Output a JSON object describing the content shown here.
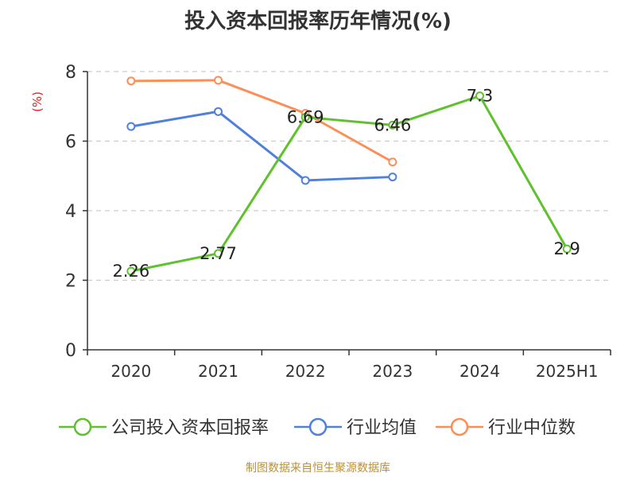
{
  "chart_data": {
    "type": "line",
    "title": "投入资本回报率历年情况(%)",
    "ylabel": "(%)",
    "xlabel": "",
    "categories": [
      "2020",
      "2021",
      "2022",
      "2023",
      "2024",
      "2025H1"
    ],
    "ylim": [
      0,
      8
    ],
    "yticks": [
      0,
      2,
      4,
      6,
      8
    ],
    "grid": true,
    "legend_position": "bottom",
    "series": [
      {
        "name": "公司投入资本回报率",
        "color": "#5ec12d",
        "values": [
          2.26,
          2.77,
          6.69,
          6.46,
          7.3,
          2.9
        ],
        "labels": [
          "2.26",
          "2.77",
          "6.69",
          "6.46",
          "7.3",
          "2.9"
        ]
      },
      {
        "name": "行业均值",
        "color": "#4f81db",
        "values": [
          6.42,
          6.85,
          4.87,
          4.97,
          null,
          null
        ]
      },
      {
        "name": "行业中位数",
        "color": "#fb8f57",
        "values": [
          7.73,
          7.75,
          6.8,
          5.4,
          null,
          null
        ]
      }
    ]
  },
  "source": "制图数据来自恒生聚源数据库"
}
